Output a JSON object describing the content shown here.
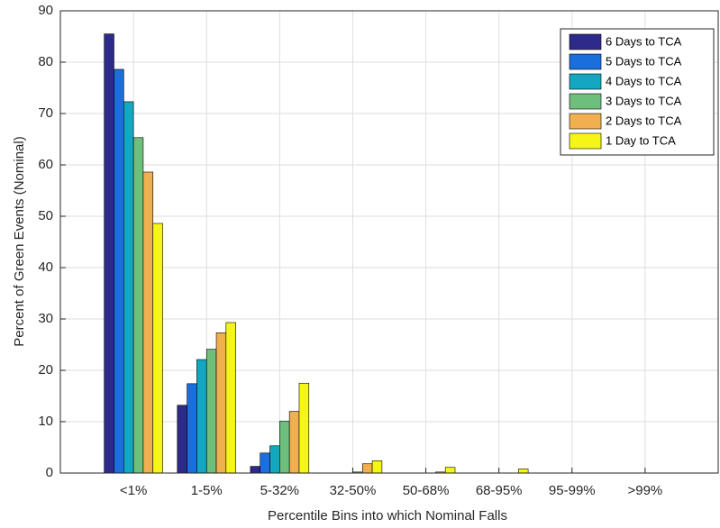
{
  "chart_data": {
    "type": "bar",
    "x_label": "Percentile Bins into which Nominal Falls",
    "y_label": "Percent of Green Events (Nominal)",
    "categories": [
      "<1%",
      "1-5%",
      "5-32%",
      "32-50%",
      "50-68%",
      "68-95%",
      "95-99%",
      ">99%"
    ],
    "series": [
      {
        "name": "6 Days to TCA",
        "color": "#2e2a8a",
        "values": [
          85.5,
          13.2,
          1.3,
          0,
          0,
          0,
          0,
          0
        ]
      },
      {
        "name": "5 Days to TCA",
        "color": "#1a6fdc",
        "values": [
          78.6,
          17.4,
          3.9,
          0,
          0,
          0,
          0,
          0
        ]
      },
      {
        "name": "4 Days to TCA",
        "color": "#14a7c2",
        "values": [
          72.3,
          22.1,
          5.3,
          0,
          0,
          0,
          0,
          0
        ]
      },
      {
        "name": "3 Days to TCA",
        "color": "#6fbf7c",
        "values": [
          65.3,
          24.1,
          10.1,
          0.2,
          0,
          0,
          0,
          0
        ]
      },
      {
        "name": "2 Days to TCA",
        "color": "#f0b050",
        "values": [
          58.6,
          27.3,
          12.0,
          1.8,
          0.2,
          0,
          0,
          0
        ]
      },
      {
        "name": "1 Day to TCA",
        "color": "#f5f516",
        "values": [
          48.6,
          29.3,
          17.5,
          2.4,
          1.1,
          0.8,
          0,
          0
        ]
      }
    ],
    "ylim": [
      0,
      90
    ],
    "yticks": [
      0,
      10,
      20,
      30,
      40,
      50,
      60,
      70,
      80,
      90
    ],
    "grid": true,
    "legend": "top-right"
  }
}
